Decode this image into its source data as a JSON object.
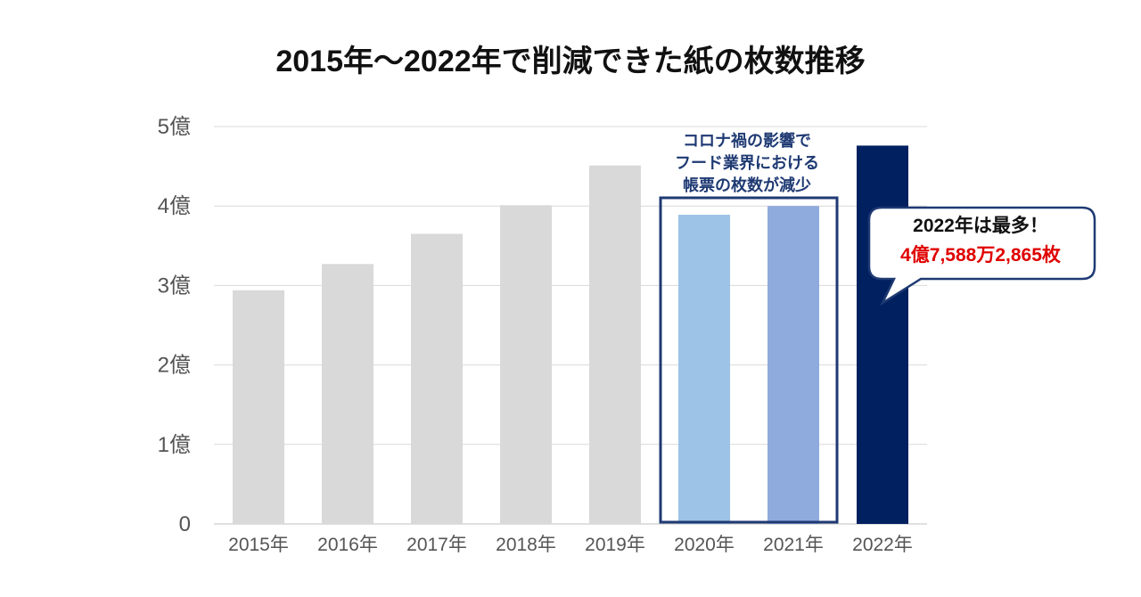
{
  "chart_data": {
    "type": "bar",
    "title": "2015年～2022年で削減できた紙の枚数推移",
    "categories": [
      "2015年",
      "2016年",
      "2017年",
      "2018年",
      "2019年",
      "2020年",
      "2021年",
      "2022年"
    ],
    "values": [
      2.94,
      3.27,
      3.65,
      4.01,
      4.51,
      3.89,
      4.0,
      4.76
    ],
    "ytick_labels": [
      "0",
      "1億",
      "2億",
      "3億",
      "4億",
      "5億"
    ],
    "ylim": [
      0,
      5
    ],
    "grid": true,
    "bar_colors": [
      "#d9d9d9",
      "#d9d9d9",
      "#d9d9d9",
      "#d9d9d9",
      "#d9d9d9",
      "#9dc3e6",
      "#8faadc",
      "#002060"
    ],
    "annotation_box": {
      "lines": [
        "コロナ禍の影響で",
        "フード業界における",
        "帳票の枚数が減少"
      ],
      "color": "#1f3a73"
    },
    "callout": {
      "line1": "2022年は最多！",
      "line2": "4億7,588万2,865枚",
      "line2_color": "#e00000",
      "border_color": "#1f3a73"
    }
  }
}
